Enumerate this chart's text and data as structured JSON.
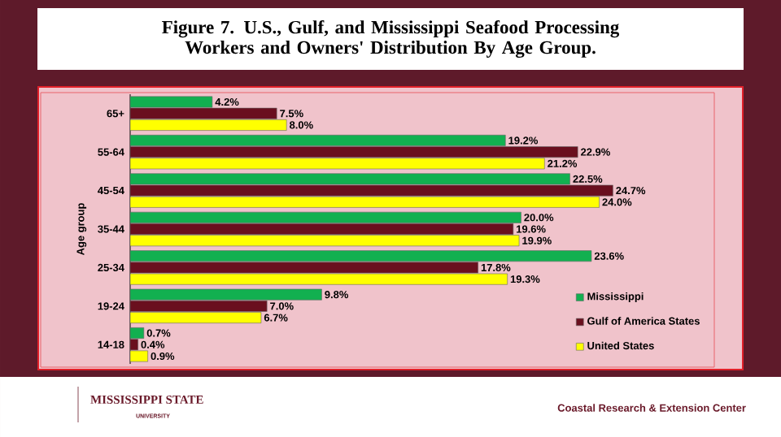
{
  "chart_data": {
    "type": "bar",
    "orientation": "horizontal",
    "title": "Figure 7. U.S., Gulf, and Mississippi Seafood Processing Workers and Owners' Distribution By Age Group.",
    "ylabel": "Age group",
    "categories": [
      "65+",
      "55-64",
      "45-54",
      "35-44",
      "25-34",
      "19-24",
      "14-18"
    ],
    "series": [
      {
        "name": "Mississippi",
        "color": "#12b050",
        "values": [
          4.2,
          19.2,
          22.5,
          20.0,
          23.6,
          9.8,
          0.7
        ],
        "value_labels": [
          "4.2%",
          "19.2%",
          "22.5%",
          "20.0%",
          "23.6%",
          "9.8%",
          "0.7%"
        ]
      },
      {
        "name": "Gulf of America States",
        "color": "#6a0f1e",
        "values": [
          7.5,
          22.9,
          24.7,
          19.6,
          17.8,
          7.0,
          0.4
        ],
        "value_labels": [
          "7.5%",
          "22.9%",
          "24.7%",
          "19.6%",
          "17.8%",
          "7.0%",
          "0.4%"
        ]
      },
      {
        "name": "United States",
        "color": "#ffff00",
        "values": [
          8.0,
          21.2,
          24.0,
          19.9,
          19.3,
          6.7,
          0.9
        ],
        "value_labels": [
          "8.0%",
          "21.2%",
          "24.0%",
          "19.9%",
          "19.3%",
          "6.7%",
          "0.9%"
        ]
      }
    ],
    "legend": "bottom right",
    "annotations": [
      "MISSISSIPPI STATE",
      "UNIVERSITY",
      "Coastal Research & Extension Center"
    ]
  }
}
